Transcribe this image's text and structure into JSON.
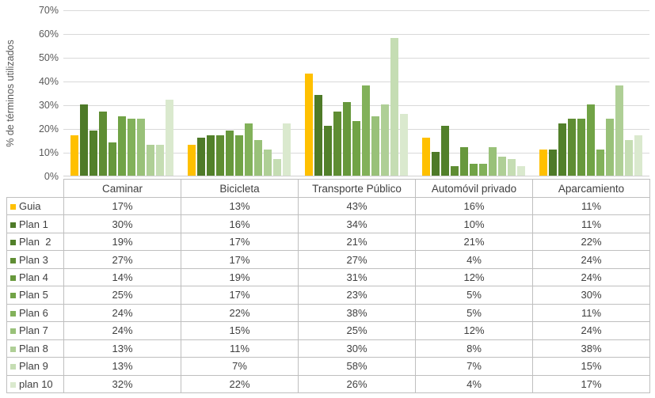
{
  "chart_data": {
    "type": "bar",
    "title": "",
    "xlabel": "",
    "ylabel": "% de términos utilizados",
    "ylim": [
      0,
      70
    ],
    "ytick_step": 10,
    "ytick_labels": [
      "0%",
      "10%",
      "20%",
      "30%",
      "40%",
      "50%",
      "60%",
      "70%"
    ],
    "grid": true,
    "legend_position": "table-left-column",
    "categories": [
      "Caminar",
      "Bicicleta",
      "Transporte Público",
      "Automóvil privado",
      "Aparcamiento"
    ],
    "series": [
      {
        "name": "Guia",
        "color": "#FFC000",
        "values": [
          17,
          13,
          43,
          16,
          11
        ]
      },
      {
        "name": "Plan 1",
        "color": "#4E7A28",
        "values": [
          30,
          16,
          34,
          10,
          11
        ]
      },
      {
        "name": "Plan  2",
        "color": "#52802A",
        "values": [
          19,
          17,
          21,
          21,
          22
        ]
      },
      {
        "name": "Plan 3",
        "color": "#5F8D33",
        "values": [
          27,
          17,
          27,
          4,
          24
        ]
      },
      {
        "name": "Plan 4",
        "color": "#67983C",
        "values": [
          14,
          19,
          31,
          12,
          24
        ]
      },
      {
        "name": "Plan 5",
        "color": "#71A346",
        "values": [
          25,
          17,
          23,
          5,
          30
        ]
      },
      {
        "name": "Plan 6",
        "color": "#82B15A",
        "values": [
          24,
          22,
          38,
          5,
          11
        ]
      },
      {
        "name": "Plan 7",
        "color": "#99C179",
        "values": [
          24,
          15,
          25,
          12,
          24
        ]
      },
      {
        "name": "Plan 8",
        "color": "#AFCF96",
        "values": [
          13,
          11,
          30,
          8,
          38
        ]
      },
      {
        "name": "Plan 9",
        "color": "#C5DDB3",
        "values": [
          13,
          7,
          58,
          7,
          15
        ]
      },
      {
        "name": "plan 10",
        "color": "#DAE9CE",
        "values": [
          32,
          22,
          26,
          4,
          17
        ]
      }
    ]
  },
  "table": {
    "columns": [
      "Caminar",
      "Bicicleta",
      "Transporte Público",
      "Automóvil privado",
      "Aparcamiento"
    ],
    "rows": [
      {
        "label": "Guia",
        "cells": [
          "17%",
          "13%",
          "43%",
          "16%",
          "11%"
        ]
      },
      {
        "label": "Plan 1",
        "cells": [
          "30%",
          "16%",
          "34%",
          "10%",
          "11%"
        ]
      },
      {
        "label": "Plan  2",
        "cells": [
          "19%",
          "17%",
          "21%",
          "21%",
          "22%"
        ]
      },
      {
        "label": "Plan 3",
        "cells": [
          "27%",
          "17%",
          "27%",
          "4%",
          "24%"
        ]
      },
      {
        "label": "Plan 4",
        "cells": [
          "14%",
          "19%",
          "31%",
          "12%",
          "24%"
        ]
      },
      {
        "label": "Plan 5",
        "cells": [
          "25%",
          "17%",
          "23%",
          "5%",
          "30%"
        ]
      },
      {
        "label": "Plan 6",
        "cells": [
          "24%",
          "22%",
          "38%",
          "5%",
          "11%"
        ]
      },
      {
        "label": "Plan 7",
        "cells": [
          "24%",
          "15%",
          "25%",
          "12%",
          "24%"
        ]
      },
      {
        "label": "Plan 8",
        "cells": [
          "13%",
          "11%",
          "30%",
          "8%",
          "38%"
        ]
      },
      {
        "label": "Plan 9",
        "cells": [
          "13%",
          "7%",
          "58%",
          "7%",
          "15%"
        ]
      },
      {
        "label": "plan 10",
        "cells": [
          "32%",
          "22%",
          "26%",
          "4%",
          "17%"
        ]
      }
    ]
  },
  "colors": {
    "gridline": "#d9d9d9",
    "axis_text": "#595959",
    "table_border": "#bfbfbf",
    "table_text": "#3f3f3f"
  }
}
